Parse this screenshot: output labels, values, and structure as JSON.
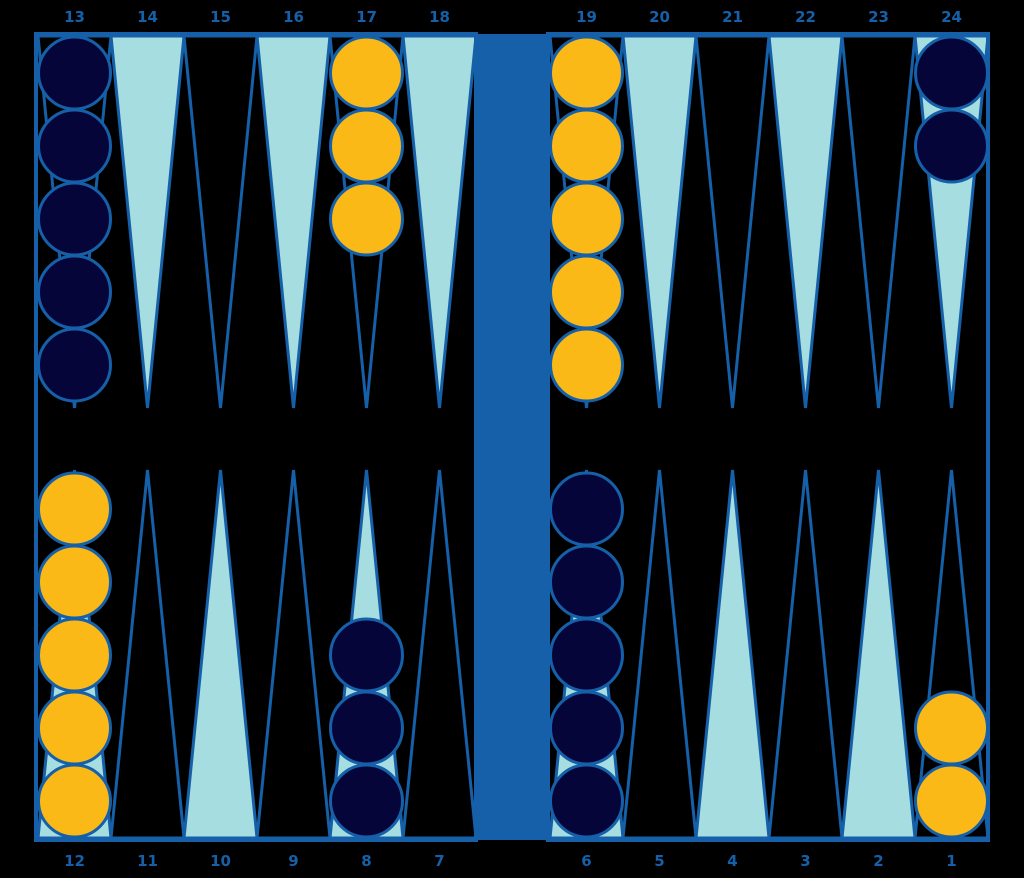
{
  "colors": {
    "frame": "#1560a8",
    "bar": "#1560a8",
    "point_light": "#a6dde0",
    "point_dark": "#000000",
    "background": "#000000",
    "checker_light": "#fbb917",
    "checker_dark": "#05053a",
    "checker_outline": "#1560a8",
    "label": "#1560a8"
  },
  "top_labels": [
    "13",
    "14",
    "15",
    "16",
    "17",
    "18",
    "19",
    "20",
    "21",
    "22",
    "23",
    "24"
  ],
  "bottom_labels": [
    "12",
    "11",
    "10",
    "9",
    "8",
    "7",
    "6",
    "5",
    "4",
    "3",
    "2",
    "1"
  ],
  "top_points": [
    {
      "point": "13",
      "shade": "dark",
      "checkers": 5,
      "checker_color": "dark"
    },
    {
      "point": "14",
      "shade": "light",
      "checkers": 0,
      "checker_color": "none"
    },
    {
      "point": "15",
      "shade": "dark",
      "checkers": 0,
      "checker_color": "none"
    },
    {
      "point": "16",
      "shade": "light",
      "checkers": 0,
      "checker_color": "none"
    },
    {
      "point": "17",
      "shade": "dark",
      "checkers": 3,
      "checker_color": "light"
    },
    {
      "point": "18",
      "shade": "light",
      "checkers": 0,
      "checker_color": "none"
    },
    {
      "point": "19",
      "shade": "dark",
      "checkers": 5,
      "checker_color": "light"
    },
    {
      "point": "20",
      "shade": "light",
      "checkers": 0,
      "checker_color": "none"
    },
    {
      "point": "21",
      "shade": "dark",
      "checkers": 0,
      "checker_color": "none"
    },
    {
      "point": "22",
      "shade": "light",
      "checkers": 0,
      "checker_color": "none"
    },
    {
      "point": "23",
      "shade": "dark",
      "checkers": 0,
      "checker_color": "none"
    },
    {
      "point": "24",
      "shade": "light",
      "checkers": 2,
      "checker_color": "dark"
    }
  ],
  "bottom_points": [
    {
      "point": "12",
      "shade": "light",
      "checkers": 5,
      "checker_color": "light"
    },
    {
      "point": "11",
      "shade": "dark",
      "checkers": 0,
      "checker_color": "none"
    },
    {
      "point": "10",
      "shade": "light",
      "checkers": 0,
      "checker_color": "none"
    },
    {
      "point": "9",
      "shade": "dark",
      "checkers": 0,
      "checker_color": "none"
    },
    {
      "point": "8",
      "shade": "light",
      "checkers": 3,
      "checker_color": "dark"
    },
    {
      "point": "7",
      "shade": "dark",
      "checkers": 0,
      "checker_color": "none"
    },
    {
      "point": "6",
      "shade": "light",
      "checkers": 5,
      "checker_color": "dark"
    },
    {
      "point": "5",
      "shade": "dark",
      "checkers": 0,
      "checker_color": "none"
    },
    {
      "point": "4",
      "shade": "light",
      "checkers": 0,
      "checker_color": "none"
    },
    {
      "point": "3",
      "shade": "dark",
      "checkers": 0,
      "checker_color": "none"
    },
    {
      "point": "2",
      "shade": "light",
      "checkers": 0,
      "checker_color": "none"
    },
    {
      "point": "1",
      "shade": "dark",
      "checkers": 2,
      "checker_color": "light"
    }
  ]
}
